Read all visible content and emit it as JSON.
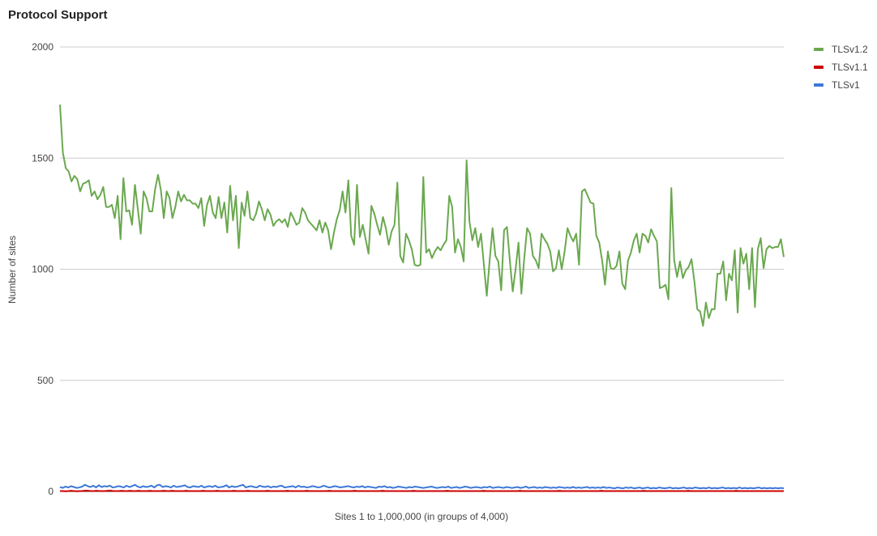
{
  "chart_data": {
    "type": "line",
    "title": "Protocol Support",
    "xlabel": "Sites 1 to 1,000,000 (in groups of 4,000)",
    "ylabel": "Number of sites",
    "ylim": [
      0,
      2000
    ],
    "yticks": [
      0,
      500,
      1000,
      1500,
      2000
    ],
    "grid": true,
    "legend_position": "right",
    "series": [
      {
        "name": "TLSv1.2",
        "color": "#6aa84f",
        "values": [
          1740,
          1525,
          1455,
          1440,
          1395,
          1420,
          1405,
          1350,
          1385,
          1390,
          1400,
          1330,
          1350,
          1315,
          1335,
          1370,
          1280,
          1280,
          1290,
          1230,
          1330,
          1135,
          1410,
          1260,
          1265,
          1200,
          1380,
          1270,
          1160,
          1350,
          1320,
          1260,
          1260,
          1360,
          1425,
          1355,
          1230,
          1350,
          1320,
          1230,
          1280,
          1350,
          1305,
          1335,
          1310,
          1310,
          1295,
          1295,
          1275,
          1320,
          1195,
          1290,
          1330,
          1255,
          1230,
          1325,
          1230,
          1300,
          1165,
          1375,
          1220,
          1330,
          1095,
          1300,
          1240,
          1350,
          1230,
          1220,
          1250,
          1305,
          1270,
          1220,
          1270,
          1245,
          1195,
          1215,
          1225,
          1210,
          1225,
          1190,
          1255,
          1230,
          1200,
          1210,
          1275,
          1255,
          1220,
          1205,
          1190,
          1175,
          1220,
          1165,
          1210,
          1175,
          1090,
          1165,
          1225,
          1265,
          1350,
          1255,
          1400,
          1150,
          1110,
          1380,
          1145,
          1200,
          1135,
          1070,
          1285,
          1250,
          1200,
          1155,
          1235,
          1185,
          1110,
          1170,
          1200,
          1390,
          1060,
          1030,
          1160,
          1130,
          1090,
          1020,
          1015,
          1020,
          1415,
          1075,
          1090,
          1050,
          1080,
          1100,
          1085,
          1110,
          1130,
          1330,
          1280,
          1075,
          1135,
          1100,
          1035,
          1490,
          1215,
          1130,
          1185,
          1100,
          1160,
          1020,
          880,
          1040,
          1185,
          1060,
          1035,
          905,
          1175,
          1190,
          1040,
          900,
          1000,
          1120,
          890,
          1050,
          1185,
          1160,
          1060,
          1040,
          1005,
          1160,
          1135,
          1115,
          1080,
          990,
          1005,
          1085,
          1000,
          1080,
          1185,
          1150,
          1125,
          1160,
          1020,
          1350,
          1360,
          1330,
          1300,
          1295,
          1150,
          1120,
          1040,
          930,
          1080,
          1005,
          1000,
          1015,
          1080,
          935,
          910,
          1040,
          1075,
          1130,
          1160,
          1075,
          1160,
          1150,
          1120,
          1180,
          1150,
          1125,
          915,
          920,
          930,
          865,
          1365,
          1040,
          965,
          1035,
          960,
          995,
          1010,
          1045,
          945,
          820,
          810,
          745,
          850,
          780,
          820,
          820,
          980,
          980,
          1035,
          860,
          980,
          950,
          1085,
          805,
          1095,
          1025,
          1070,
          910,
          1095,
          830,
          1090,
          1140,
          1005,
          1090,
          1105,
          1095,
          1100,
          1100,
          1135,
          1055
        ]
      },
      {
        "name": "TLSv1.1",
        "color": "#cc0000",
        "values": [
          2,
          2,
          1,
          2,
          3,
          2,
          1,
          2,
          2,
          4,
          3,
          2,
          2,
          3,
          2,
          2,
          2,
          3,
          4,
          2,
          2,
          2,
          3,
          2,
          2,
          3,
          2,
          2,
          3,
          2,
          2,
          2,
          3,
          2,
          2,
          2,
          2,
          3,
          2,
          2,
          3,
          2,
          2,
          2,
          2,
          3,
          2,
          2,
          2,
          2,
          2,
          3,
          2,
          2,
          2,
          2,
          3,
          2,
          2,
          2,
          2,
          2,
          3,
          2,
          2,
          2,
          2,
          3,
          2,
          2,
          2,
          2,
          2,
          2,
          3,
          2,
          2,
          2,
          2,
          2,
          2,
          3,
          2,
          2,
          2,
          2,
          2,
          2,
          3,
          2,
          2,
          2,
          2,
          2,
          2,
          2,
          3,
          2,
          2,
          2,
          2,
          2,
          2,
          2,
          2,
          3,
          2,
          2,
          2,
          2,
          2,
          2,
          2,
          2,
          2,
          3,
          2,
          2,
          2,
          2,
          2,
          2,
          2,
          2,
          2,
          2,
          3,
          2,
          2,
          2,
          2,
          2,
          2,
          2,
          2,
          2,
          2,
          2,
          3,
          2,
          2,
          2,
          2,
          2,
          2,
          2,
          2,
          2,
          2,
          2,
          2,
          3,
          2,
          2,
          2,
          2,
          2,
          2,
          2,
          2,
          2,
          2,
          2,
          2,
          3,
          2,
          2,
          2,
          2,
          2,
          2,
          2,
          2,
          2,
          2,
          2,
          2,
          2,
          3,
          2,
          2,
          2,
          2,
          2,
          2,
          2,
          2,
          2,
          2,
          2,
          2,
          2,
          2,
          3,
          2,
          2,
          2,
          2,
          2,
          2,
          2,
          2,
          2,
          2,
          2,
          2,
          2,
          2,
          3,
          2,
          2,
          2,
          2,
          2,
          2,
          2,
          2,
          2,
          2,
          2,
          2,
          2,
          2,
          2,
          3,
          2,
          2,
          2,
          2,
          2,
          2,
          2,
          2,
          2,
          2,
          2,
          2,
          2,
          2,
          2,
          2,
          3,
          2,
          2,
          2,
          2,
          2,
          2,
          2,
          2,
          2,
          2,
          2,
          2,
          2,
          2,
          2,
          2,
          2
        ]
      },
      {
        "name": "TLSv1",
        "color": "#3c78d8",
        "values": [
          20,
          16,
          22,
          18,
          24,
          20,
          16,
          18,
          22,
          30,
          24,
          20,
          26,
          18,
          28,
          20,
          24,
          22,
          26,
          18,
          20,
          24,
          22,
          18,
          26,
          20,
          24,
          30,
          22,
          18,
          24,
          20,
          22,
          26,
          18,
          28,
          30,
          20,
          24,
          22,
          18,
          26,
          20,
          22,
          24,
          28,
          20,
          18,
          24,
          22,
          20,
          26,
          18,
          22,
          24,
          20,
          26,
          18,
          20,
          22,
          28,
          18,
          24,
          20,
          22,
          26,
          30,
          18,
          22,
          24,
          20,
          18,
          26,
          22,
          20,
          24,
          18,
          22,
          20,
          24,
          26,
          18,
          20,
          22,
          24,
          18,
          26,
          20,
          22,
          18,
          20,
          24,
          22,
          18,
          20,
          26,
          22,
          18,
          20,
          24,
          22,
          18,
          20,
          22,
          24,
          20,
          18,
          22,
          20,
          24,
          18,
          22,
          20,
          18,
          16,
          22,
          20,
          24,
          18,
          20,
          16,
          18,
          22,
          20,
          18,
          16,
          20,
          18,
          22,
          20,
          18,
          16,
          18,
          20,
          22,
          18,
          16,
          18,
          20,
          18,
          22,
          16,
          18,
          20,
          16,
          18,
          22,
          20,
          16,
          18,
          20,
          18,
          16,
          20,
          18,
          22,
          16,
          18,
          20,
          18,
          16,
          20,
          18,
          16,
          18,
          20,
          16,
          18,
          22,
          16,
          18,
          20,
          16,
          18,
          16,
          20,
          18,
          16,
          18,
          16,
          20,
          18,
          16,
          18,
          16,
          20,
          16,
          18,
          16,
          18,
          20,
          16,
          18,
          16,
          18,
          16,
          20,
          16,
          18,
          16,
          14,
          18,
          16,
          14,
          18,
          16,
          18,
          14,
          16,
          18,
          14,
          16,
          18,
          14,
          16,
          14,
          18,
          16,
          14,
          16,
          18,
          14,
          16,
          14,
          16,
          18,
          14,
          16,
          14,
          18,
          16,
          14,
          16,
          14,
          18,
          14,
          16,
          14,
          16,
          18,
          14,
          16,
          14,
          16,
          14,
          18,
          14,
          16,
          14,
          16,
          14,
          16,
          18,
          14,
          16,
          14,
          16,
          14,
          16,
          14,
          16,
          14
        ]
      }
    ]
  }
}
